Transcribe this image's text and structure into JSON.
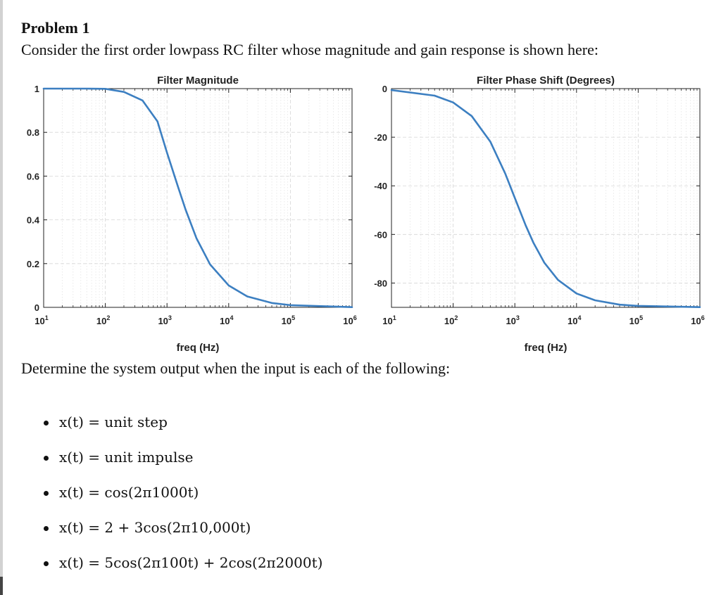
{
  "problem": {
    "title": "Problem 1",
    "description": "Consider the first order lowpass RC filter whose magnitude and gain response is shown here:"
  },
  "chart_data": [
    {
      "type": "line",
      "title": "Filter Magnitude",
      "xlabel": "freq (Hz)",
      "ylabel": "",
      "x_scale": "log",
      "xlim": [
        10,
        1000000
      ],
      "ylim": [
        0,
        1
      ],
      "x_ticks": [
        "10^1",
        "10^2",
        "10^3",
        "10^4",
        "10^5",
        "10^6"
      ],
      "y_ticks": [
        "0",
        "0.2",
        "0.4",
        "0.6",
        "0.8",
        "1"
      ],
      "grid": true,
      "series": [
        {
          "color": "#3c7fc1",
          "x": [
            10,
            50,
            100,
            200,
            400,
            700,
            1000,
            1500,
            2000,
            3000,
            5000,
            10000,
            20000,
            50000,
            100000,
            1000000
          ],
          "y": [
            1,
            1,
            0.999,
            0.985,
            0.946,
            0.85,
            0.707,
            0.553,
            0.447,
            0.316,
            0.196,
            0.1,
            0.05,
            0.02,
            0.01,
            0.001
          ]
        }
      ]
    },
    {
      "type": "line",
      "title": "Filter Phase Shift (Degrees)",
      "xlabel": "freq (Hz)",
      "ylabel": "",
      "x_scale": "log",
      "xlim": [
        10,
        1000000
      ],
      "ylim": [
        -90,
        0
      ],
      "x_ticks": [
        "10^1",
        "10^2",
        "10^3",
        "10^4",
        "10^5",
        "10^6"
      ],
      "y_ticks": [
        "-80",
        "-60",
        "-40",
        "-20",
        "0"
      ],
      "grid": true,
      "series": [
        {
          "color": "#3c7fc1",
          "x": [
            10,
            50,
            100,
            200,
            400,
            700,
            1000,
            1500,
            2000,
            3000,
            5000,
            10000,
            20000,
            50000,
            100000,
            1000000
          ],
          "y": [
            -0.6,
            -2.9,
            -5.7,
            -11.3,
            -21.8,
            -35,
            -45,
            -56.3,
            -63.4,
            -71.6,
            -78.7,
            -84.3,
            -87.1,
            -88.9,
            -89.4,
            -89.9
          ]
        }
      ]
    }
  ],
  "question": "Determine the system output when the input is each of the following:",
  "inputs": [
    {
      "lhs": "x(t)",
      "rhs": " = unit step"
    },
    {
      "lhs": "x(t)",
      "rhs": " = unit impulse"
    },
    {
      "lhs": "x(t)",
      "rhs": " = cos(2π1000t)"
    },
    {
      "lhs": "x(t)",
      "rhs": " = 2 + 3cos(2π10,000t)"
    },
    {
      "lhs": "x(t)",
      "rhs": " = 5cos(2π100t) + 2cos(2π2000t)"
    }
  ]
}
